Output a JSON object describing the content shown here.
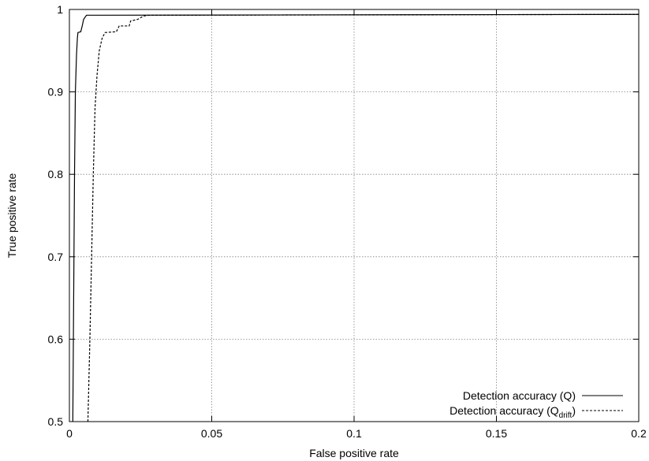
{
  "chart_data": {
    "type": "line",
    "xlabel": "False positive rate",
    "ylabel": "True positive rate",
    "xlim": [
      0,
      0.2
    ],
    "ylim": [
      0.5,
      1
    ],
    "x_ticks": [
      0,
      0.05,
      0.1,
      0.15,
      0.2
    ],
    "x_tick_labels": [
      "0",
      "0.05",
      "0.1",
      "0.15",
      "0.2"
    ],
    "y_ticks": [
      0.5,
      0.6,
      0.7,
      0.8,
      0.9,
      1
    ],
    "y_tick_labels": [
      "0.5",
      "0.6",
      "0.7",
      "0.8",
      "0.9",
      "1"
    ],
    "grid": true,
    "legend_position": "bottom-right",
    "series": [
      {
        "name": "Detection accuracy (Q)",
        "legend_main": "Detection accuracy (Q)",
        "legend_sub": "",
        "legend_tail": "",
        "style": "solid",
        "color": "#000000",
        "points": [
          [
            0.0012,
            0.5
          ],
          [
            0.0014,
            0.6
          ],
          [
            0.0016,
            0.7
          ],
          [
            0.0018,
            0.8
          ],
          [
            0.0021,
            0.9
          ],
          [
            0.0025,
            0.945
          ],
          [
            0.0028,
            0.965
          ],
          [
            0.003,
            0.972
          ],
          [
            0.004,
            0.973
          ],
          [
            0.0045,
            0.98
          ],
          [
            0.005,
            0.988
          ],
          [
            0.006,
            0.993
          ],
          [
            0.2,
            0.994
          ]
        ]
      },
      {
        "name": "Detection accuracy (Q_drift)",
        "legend_main": "Detection accuracy (Q",
        "legend_sub": "drift",
        "legend_tail": ")",
        "style": "dashed",
        "color": "#000000",
        "points": [
          [
            0.0065,
            0.5
          ],
          [
            0.0072,
            0.6
          ],
          [
            0.0078,
            0.7
          ],
          [
            0.0084,
            0.8
          ],
          [
            0.009,
            0.88
          ],
          [
            0.0097,
            0.92
          ],
          [
            0.0105,
            0.95
          ],
          [
            0.0115,
            0.965
          ],
          [
            0.0125,
            0.972
          ],
          [
            0.0165,
            0.973
          ],
          [
            0.0175,
            0.98
          ],
          [
            0.021,
            0.98
          ],
          [
            0.0215,
            0.986
          ],
          [
            0.024,
            0.988
          ],
          [
            0.026,
            0.992
          ],
          [
            0.028,
            0.993
          ],
          [
            0.2,
            0.994
          ]
        ]
      }
    ]
  }
}
